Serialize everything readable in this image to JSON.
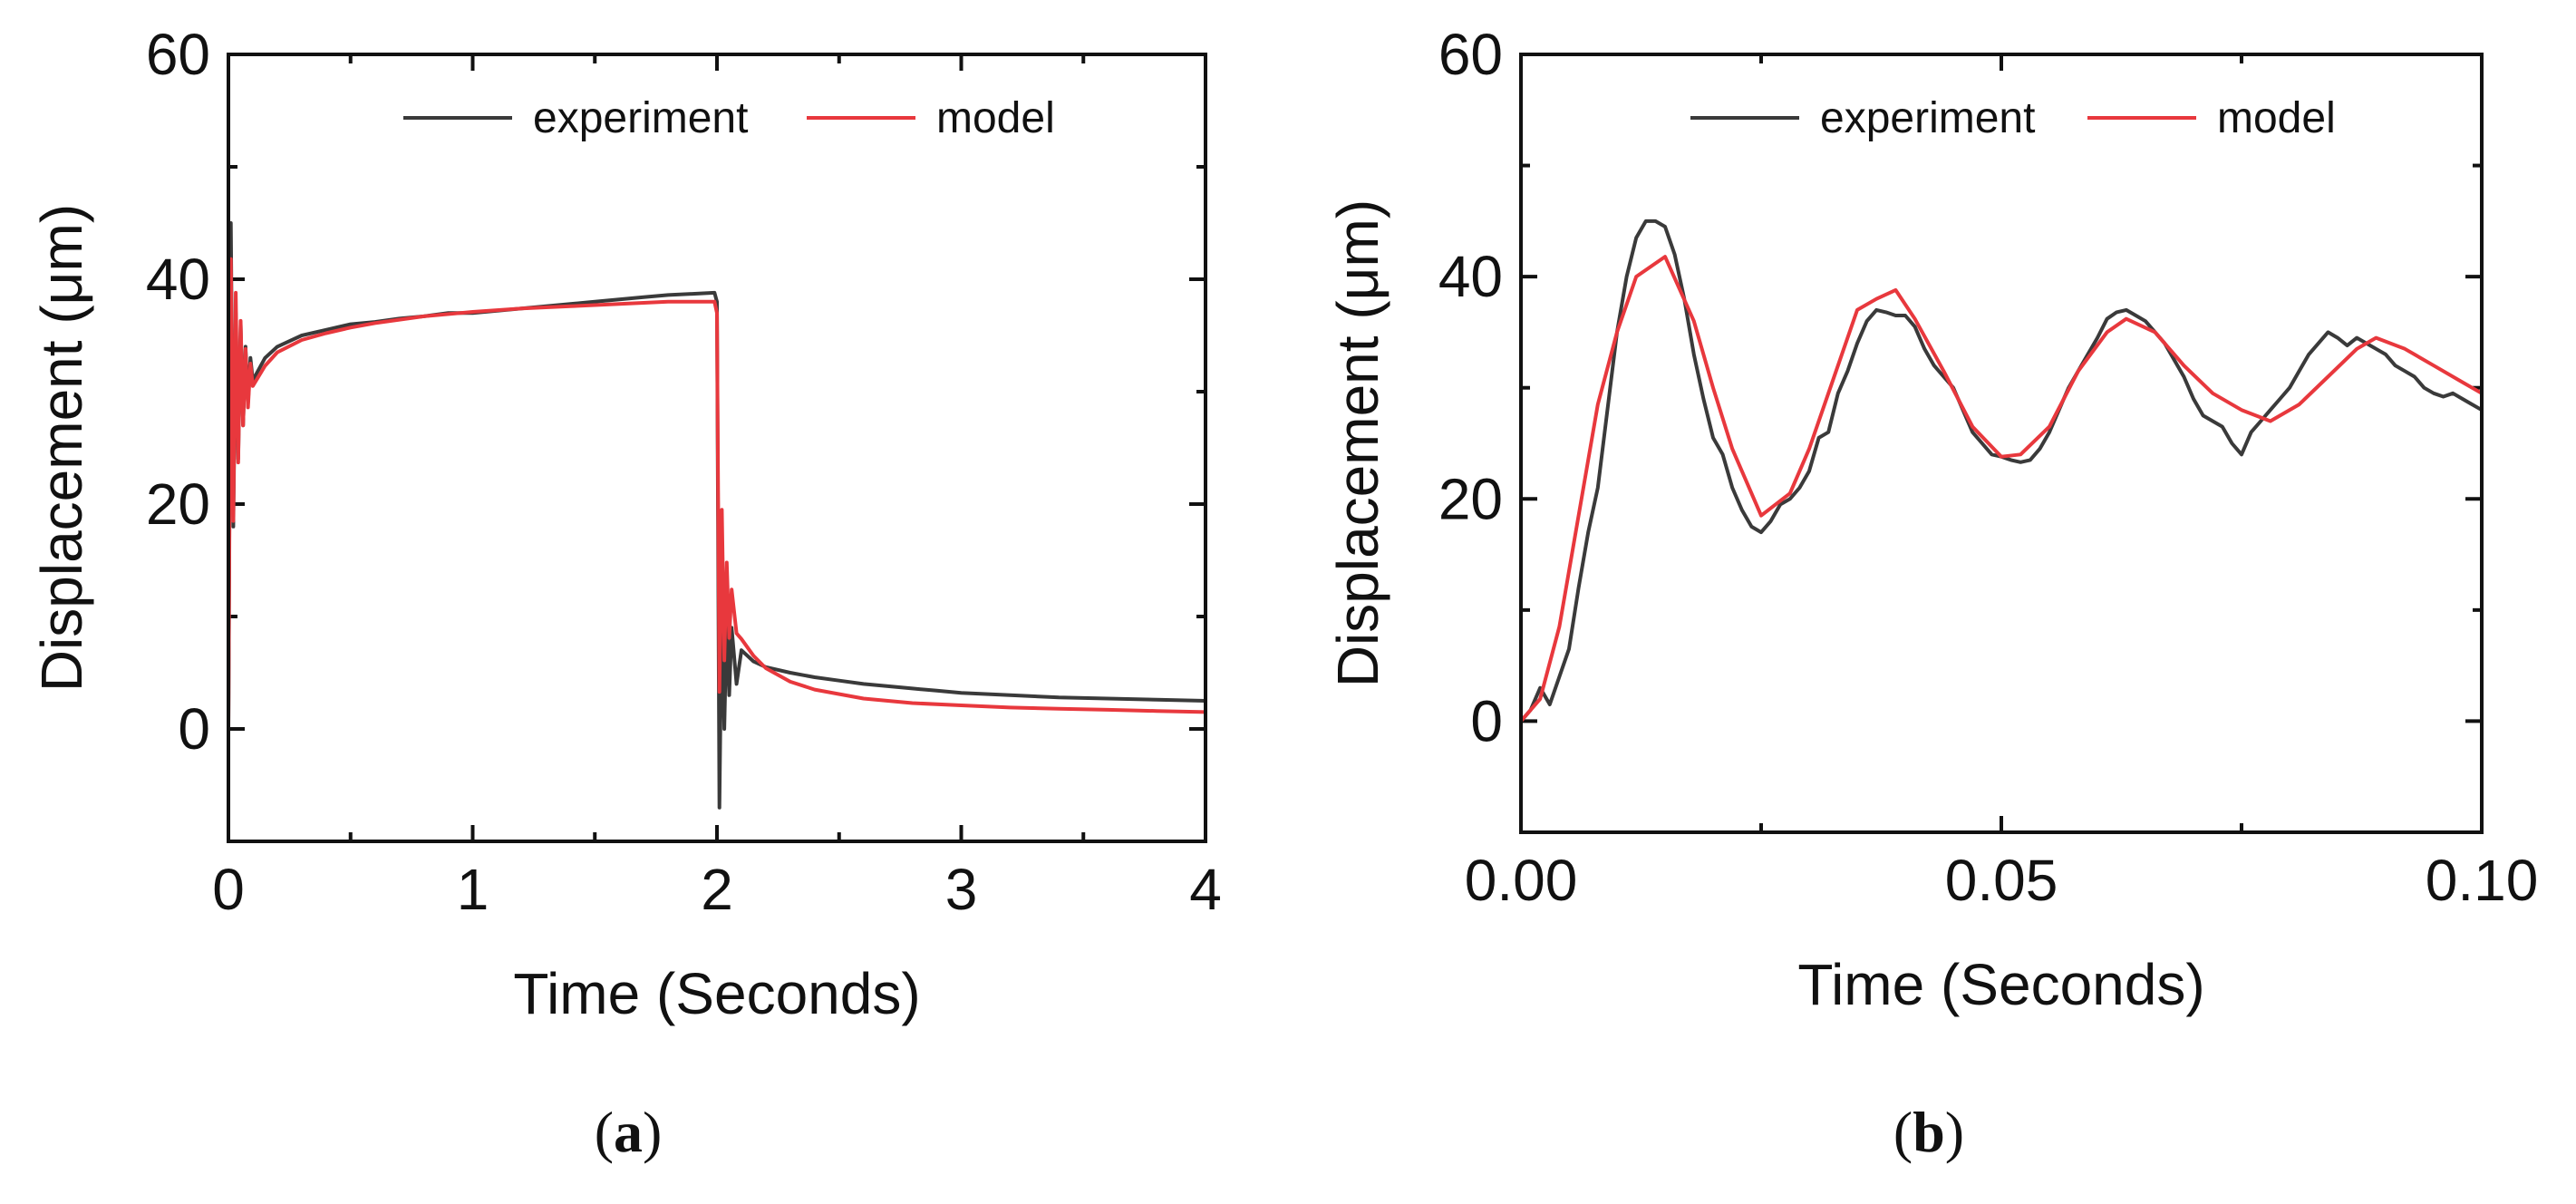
{
  "chart_data": [
    {
      "id": "a",
      "type": "line",
      "panel_label": "(a)",
      "panel_letter": "a",
      "title": "",
      "xlabel": "Time (Seconds)",
      "ylabel": "Displacement (μm)",
      "xlim": [
        0,
        4
      ],
      "ylim": [
        -10,
        60
      ],
      "xticks": [
        0,
        1,
        2,
        3,
        4
      ],
      "xtick_labels": [
        "0",
        "1",
        "2",
        "3",
        "4"
      ],
      "yticks": [
        0,
        20,
        40,
        60
      ],
      "ytick_labels": [
        "0",
        "20",
        "40",
        "60"
      ],
      "legend": {
        "position": "top-right",
        "entries": [
          "experiment",
          "model"
        ]
      },
      "series": [
        {
          "name": "experiment",
          "color": "#3a3a3a",
          "x": [
            0,
            0.01,
            0.02,
            0.03,
            0.04,
            0.05,
            0.06,
            0.07,
            0.08,
            0.09,
            0.1,
            0.15,
            0.2,
            0.3,
            0.4,
            0.5,
            0.6,
            0.7,
            0.8,
            0.9,
            1.0,
            1.1,
            1.2,
            1.3,
            1.4,
            1.5,
            1.6,
            1.7,
            1.8,
            1.9,
            1.99,
            2.0,
            2.01,
            2.02,
            2.03,
            2.04,
            2.05,
            2.06,
            2.08,
            2.1,
            2.15,
            2.2,
            2.3,
            2.4,
            2.5,
            2.6,
            2.7,
            2.8,
            2.9,
            3.0,
            3.2,
            3.4,
            3.6,
            3.8,
            4.0
          ],
          "y": [
            0,
            45,
            18,
            37,
            24,
            36,
            27,
            34,
            29,
            33,
            31,
            33,
            34,
            35,
            35.5,
            36,
            36.2,
            36.5,
            36.7,
            37,
            37,
            37.2,
            37.4,
            37.6,
            37.8,
            38,
            38.2,
            38.4,
            38.6,
            38.7,
            38.8,
            38,
            -7,
            12,
            0,
            10,
            3,
            9,
            4,
            7,
            6,
            5.5,
            5,
            4.6,
            4.3,
            4,
            3.8,
            3.6,
            3.4,
            3.2,
            3,
            2.8,
            2.7,
            2.6,
            2.5
          ]
        },
        {
          "name": "model",
          "color": "#e8383d",
          "x": [
            0,
            0.01,
            0.02,
            0.03,
            0.04,
            0.05,
            0.06,
            0.07,
            0.08,
            0.09,
            0.1,
            0.15,
            0.2,
            0.3,
            0.4,
            0.5,
            0.6,
            0.8,
            1.0,
            1.2,
            1.4,
            1.6,
            1.8,
            1.99,
            2.0,
            2.01,
            2.02,
            2.03,
            2.04,
            2.05,
            2.06,
            2.08,
            2.1,
            2.15,
            2.2,
            2.3,
            2.4,
            2.6,
            2.8,
            3.0,
            3.2,
            3.4,
            3.6,
            3.8,
            4.0
          ],
          "y": [
            0,
            41.8,
            18.5,
            38.8,
            23.7,
            36.3,
            27,
            33.8,
            28.6,
            32.5,
            30.5,
            32.3,
            33.5,
            34.6,
            35.2,
            35.7,
            36.1,
            36.7,
            37.1,
            37.4,
            37.6,
            37.8,
            38,
            38,
            37,
            3.3,
            19.5,
            6.1,
            14.8,
            8.1,
            12.4,
            8.5,
            8,
            6.5,
            5.4,
            4.2,
            3.5,
            2.7,
            2.3,
            2.1,
            1.9,
            1.8,
            1.7,
            1.6,
            1.5
          ]
        }
      ]
    },
    {
      "id": "b",
      "type": "line",
      "panel_label": "(b)",
      "panel_letter": "b",
      "title": "",
      "xlabel": "Time (Seconds)",
      "ylabel": "Displacement (μm)",
      "xlim": [
        0,
        0.1
      ],
      "ylim": [
        -10,
        60
      ],
      "xticks": [
        0,
        0.05,
        0.1
      ],
      "xtick_labels": [
        "0.00",
        "0.05",
        "0.10"
      ],
      "yticks": [
        0,
        20,
        40,
        60
      ],
      "ytick_labels": [
        "0",
        "20",
        "40",
        "60"
      ],
      "legend": {
        "position": "top-right",
        "entries": [
          "experiment",
          "model"
        ]
      },
      "series": [
        {
          "name": "experiment",
          "color": "#3a3a3a",
          "x": [
            0,
            0.001,
            0.002,
            0.003,
            0.004,
            0.005,
            0.006,
            0.007,
            0.008,
            0.009,
            0.01,
            0.011,
            0.012,
            0.013,
            0.014,
            0.015,
            0.016,
            0.017,
            0.018,
            0.019,
            0.02,
            0.021,
            0.022,
            0.023,
            0.024,
            0.025,
            0.026,
            0.027,
            0.028,
            0.029,
            0.03,
            0.031,
            0.032,
            0.033,
            0.034,
            0.035,
            0.036,
            0.037,
            0.038,
            0.039,
            0.04,
            0.041,
            0.042,
            0.043,
            0.044,
            0.045,
            0.046,
            0.047,
            0.048,
            0.049,
            0.05,
            0.051,
            0.052,
            0.053,
            0.054,
            0.055,
            0.056,
            0.057,
            0.058,
            0.059,
            0.06,
            0.061,
            0.062,
            0.063,
            0.064,
            0.065,
            0.066,
            0.067,
            0.068,
            0.069,
            0.07,
            0.071,
            0.072,
            0.073,
            0.074,
            0.075,
            0.076,
            0.077,
            0.078,
            0.079,
            0.08,
            0.081,
            0.082,
            0.083,
            0.084,
            0.085,
            0.086,
            0.087,
            0.088,
            0.089,
            0.09,
            0.091,
            0.092,
            0.093,
            0.094,
            0.095,
            0.096,
            0.097,
            0.098,
            0.099,
            0.1
          ],
          "y": [
            0,
            1,
            3,
            1.5,
            4,
            6.5,
            12,
            17,
            21,
            28,
            35,
            40,
            43.5,
            45,
            45,
            44.5,
            42,
            38,
            33,
            29,
            25.5,
            24,
            21,
            19,
            17.5,
            17,
            18,
            19.5,
            20,
            21,
            22.5,
            25.5,
            26,
            29.5,
            31.5,
            34,
            36,
            37,
            36.8,
            36.5,
            36.5,
            35.5,
            33.5,
            32,
            31,
            30,
            28,
            26,
            25,
            24,
            23.8,
            23.5,
            23.3,
            23.5,
            24.5,
            26,
            28,
            30,
            31.5,
            33,
            34.5,
            36.2,
            36.8,
            37,
            36.5,
            36,
            35,
            34,
            32.5,
            31,
            29,
            27.5,
            27,
            26.5,
            25,
            24,
            26,
            27,
            28,
            29,
            30,
            31.5,
            33,
            34,
            35,
            34.5,
            33.8,
            34.5,
            34,
            33.5,
            33,
            32,
            31.5,
            31,
            30,
            29.5,
            29.2,
            29.5,
            29,
            28.5,
            28
          ]
        },
        {
          "name": "model",
          "color": "#e8383d",
          "x": [
            0,
            0.002,
            0.004,
            0.006,
            0.008,
            0.01,
            0.012,
            0.015,
            0.018,
            0.02,
            0.022,
            0.025,
            0.028,
            0.03,
            0.032,
            0.035,
            0.037,
            0.039,
            0.041,
            0.044,
            0.047,
            0.05,
            0.052,
            0.055,
            0.058,
            0.061,
            0.063,
            0.066,
            0.069,
            0.072,
            0.075,
            0.078,
            0.081,
            0.084,
            0.087,
            0.089,
            0.092,
            0.095,
            0.098,
            0.1
          ],
          "y": [
            0,
            2,
            8.5,
            18.5,
            28.5,
            35,
            40,
            41.8,
            36,
            30,
            24.5,
            18.5,
            20.5,
            24.5,
            29.5,
            37,
            38,
            38.8,
            36.2,
            31.5,
            26.5,
            23.8,
            24,
            26.5,
            31.5,
            35,
            36.2,
            35,
            32,
            29.5,
            28,
            27,
            28.5,
            31,
            33.5,
            34.5,
            33.5,
            32,
            30.5,
            29.5
          ]
        }
      ]
    }
  ]
}
